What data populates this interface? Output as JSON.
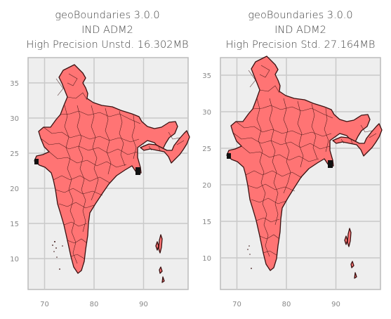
{
  "maps": [
    {
      "title_lines": [
        "geoBoundaries 3.0.0",
        "IND ADM2",
        "High Precision Unstd. 16.302MB"
      ],
      "x_ticks": [
        "70",
        "80",
        "90"
      ],
      "y_ticks": [
        "35",
        "30",
        "25",
        "20",
        "15",
        "10"
      ]
    },
    {
      "title_lines": [
        "geoBoundaries 3.0.0",
        "IND ADM2",
        "High Precision Std. 27.164MB"
      ],
      "x_ticks": [
        "70",
        "80",
        "90"
      ],
      "y_ticks": [
        "35",
        "30",
        "25",
        "20",
        "15",
        "10"
      ]
    }
  ],
  "colors": {
    "land": "#ff7474",
    "border": "#3a1111",
    "background": "#eeeeee",
    "grid": "#c9c9c9"
  }
}
